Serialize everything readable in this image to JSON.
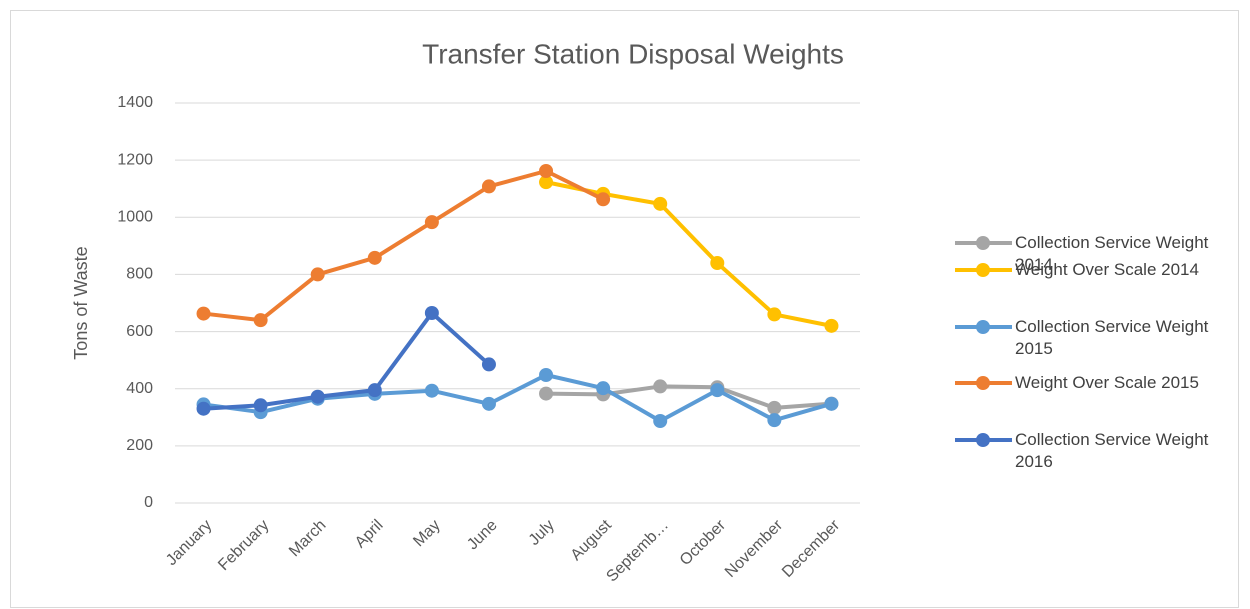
{
  "chart_data": {
    "type": "line",
    "title": "Transfer Station Disposal Weights",
    "y_label": "Tons of Waste",
    "categories": [
      "January",
      "February",
      "March",
      "April",
      "May",
      "June",
      "July",
      "August",
      "Septemb…",
      "October",
      "November",
      "December"
    ],
    "series": [
      {
        "name": "Collection Service Weight 2014",
        "color": "#a5a5a5",
        "values": [
          null,
          null,
          null,
          null,
          null,
          null,
          383,
          380,
          408,
          405,
          333,
          348
        ]
      },
      {
        "name": "Weight Over Scale 2014",
        "color": "#ffc000",
        "values": [
          null,
          null,
          null,
          null,
          null,
          null,
          1123,
          1082,
          1047,
          840,
          660,
          620
        ]
      },
      {
        "name": "Collection Service Weight 2015",
        "color": "#5b9bd5",
        "values": [
          345,
          318,
          365,
          382,
          393,
          347,
          448,
          402,
          287,
          395,
          290,
          347
        ]
      },
      {
        "name": "Weight Over Scale 2015",
        "color": "#ed7d31",
        "values": [
          663,
          640,
          800,
          858,
          983,
          1108,
          1162,
          1063,
          null,
          null,
          null,
          null
        ]
      },
      {
        "name": "Collection Service Weight 2016",
        "color": "#4472c4",
        "values": [
          330,
          342,
          372,
          395,
          665,
          485,
          null,
          null,
          null,
          null,
          null,
          null
        ]
      }
    ],
    "ylim": [
      0,
      1400
    ],
    "yticks": [
      0,
      200,
      400,
      600,
      800,
      1000,
      1200,
      1400
    ],
    "grid": true,
    "legend": "right"
  }
}
